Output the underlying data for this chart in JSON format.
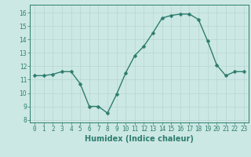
{
  "x": [
    0,
    1,
    2,
    3,
    4,
    5,
    6,
    7,
    8,
    9,
    10,
    11,
    12,
    13,
    14,
    15,
    16,
    17,
    18,
    19,
    20,
    21,
    22,
    23
  ],
  "y": [
    11.3,
    11.3,
    11.4,
    11.6,
    11.6,
    10.7,
    9.0,
    9.0,
    8.5,
    9.9,
    11.5,
    12.8,
    13.5,
    14.5,
    15.6,
    15.8,
    15.9,
    15.9,
    15.5,
    13.9,
    12.1,
    11.3,
    11.6,
    11.6
  ],
  "line_color": "#2e7d6e",
  "marker_color": "#2e7d6e",
  "bg_color": "#cce8e4",
  "grid_color": "#b8d4d0",
  "xlabel": "Humidex (Indice chaleur)",
  "xlim": [
    -0.5,
    23.5
  ],
  "ylim": [
    7.8,
    16.6
  ],
  "yticks": [
    8,
    9,
    10,
    11,
    12,
    13,
    14,
    15,
    16
  ],
  "xticks": [
    0,
    1,
    2,
    3,
    4,
    5,
    6,
    7,
    8,
    9,
    10,
    11,
    12,
    13,
    14,
    15,
    16,
    17,
    18,
    19,
    20,
    21,
    22,
    23
  ],
  "tick_label_fontsize": 5.5,
  "xlabel_fontsize": 7.0,
  "line_width": 1.0,
  "marker_size": 2.5
}
